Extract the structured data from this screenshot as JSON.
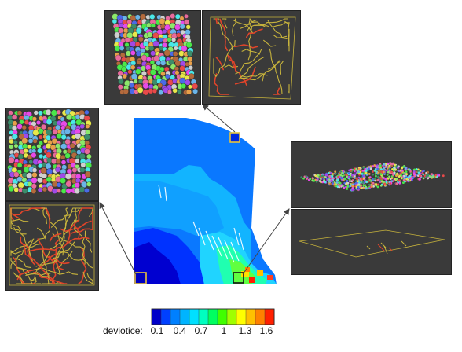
{
  "colors": {
    "panel_bg": "#3a3a3a",
    "bond_yellow": "#c8b43c",
    "bond_red": "#e0442a",
    "marker_blue_border": "#e8c43c",
    "marker_black_border": "#111111",
    "arrow": "#444444"
  },
  "colorbar": {
    "label": "deviotice:",
    "ticks": [
      "0.1",
      "0.4",
      "0.7",
      "1",
      "1.3",
      "1.6"
    ],
    "swatches": [
      "#0000c8",
      "#0040ff",
      "#0080ff",
      "#00b4ff",
      "#00e0ff",
      "#00ffc0",
      "#00ff60",
      "#40ff00",
      "#a0ff00",
      "#ffff00",
      "#ffc000",
      "#ff8000",
      "#ff2000"
    ]
  },
  "panels": [
    {
      "name": "top-left-particles",
      "kind": "particles"
    },
    {
      "name": "top-right-force-chains",
      "kind": "chains"
    },
    {
      "name": "left-particles",
      "kind": "particles"
    },
    {
      "name": "left-force-chains",
      "kind": "chains"
    },
    {
      "name": "right-flat-particles",
      "kind": "flat-particles"
    },
    {
      "name": "right-flat-chains",
      "kind": "flat-chains"
    }
  ]
}
